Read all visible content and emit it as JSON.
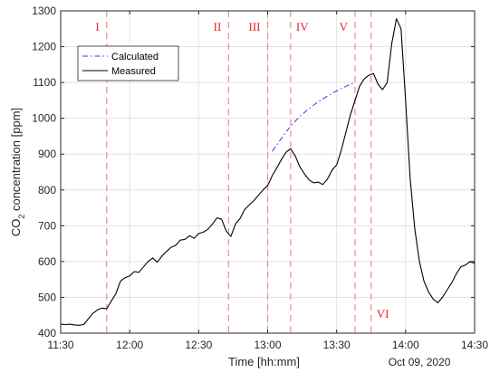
{
  "chart_data": {
    "type": "line",
    "xlabel": "Time [hh:mm]",
    "ylabel_main": "CO",
    "ylabel_sub": "2",
    "ylabel_rest": " concentration [ppm]",
    "date_label": "Oct 09, 2020",
    "xlim": [
      "11:30",
      "14:30"
    ],
    "ylim": [
      400,
      1300
    ],
    "xticks": [
      "11:30",
      "12:00",
      "12:30",
      "13:00",
      "13:30",
      "14:00",
      "14:30"
    ],
    "yticks": [
      400,
      500,
      600,
      700,
      800,
      900,
      1000,
      1100,
      1200,
      1300
    ],
    "grid": true,
    "legend_position": "top-left",
    "colors": {
      "measured": "#000000",
      "calculated": "#3b3bd8",
      "phase_line": "#f08a8a",
      "phase_text": "#e8202a"
    },
    "phases": [
      {
        "label": "I",
        "x": "11:50",
        "label_pos": "top"
      },
      {
        "label": "II",
        "x": "12:43",
        "label_pos": "top"
      },
      {
        "label": "III",
        "x": "13:00",
        "label_pos": "top"
      },
      {
        "label": "IV",
        "x": "13:10",
        "label_pos": "top"
      },
      {
        "label": "V",
        "x": "13:38",
        "label_pos": "top"
      },
      {
        "label": "VI",
        "x": "13:45",
        "label_pos": "bottom"
      }
    ],
    "series": [
      {
        "name": "Calculated",
        "style": "dashdot",
        "x": [
          "13:02",
          "13:05",
          "13:08",
          "13:11",
          "13:14",
          "13:17",
          "13:20",
          "13:23",
          "13:26",
          "13:29",
          "13:32",
          "13:35",
          "13:38"
        ],
        "y": [
          908,
          935,
          962,
          985,
          1005,
          1022,
          1037,
          1050,
          1062,
          1073,
          1083,
          1092,
          1100
        ]
      },
      {
        "name": "Measured",
        "style": "solid",
        "x": [
          "11:30",
          "11:32",
          "11:34",
          "11:36",
          "11:38",
          "11:40",
          "11:42",
          "11:44",
          "11:46",
          "11:48",
          "11:50",
          "11:52",
          "11:54",
          "11:56",
          "11:58",
          "12:00",
          "12:02",
          "12:04",
          "12:06",
          "12:08",
          "12:10",
          "12:12",
          "12:14",
          "12:16",
          "12:18",
          "12:20",
          "12:22",
          "12:24",
          "12:26",
          "12:28",
          "12:30",
          "12:32",
          "12:34",
          "12:36",
          "12:38",
          "12:40",
          "12:42",
          "12:44",
          "12:46",
          "12:48",
          "12:50",
          "12:52",
          "12:54",
          "12:56",
          "12:58",
          "13:00",
          "13:02",
          "13:04",
          "13:06",
          "13:08",
          "13:10",
          "13:12",
          "13:14",
          "13:16",
          "13:18",
          "13:20",
          "13:22",
          "13:24",
          "13:26",
          "13:28",
          "13:30",
          "13:32",
          "13:34",
          "13:36",
          "13:38",
          "13:40",
          "13:42",
          "13:44",
          "13:46",
          "13:48",
          "13:50",
          "13:52",
          "13:54",
          "13:56",
          "13:58",
          "14:00",
          "14:02",
          "14:04",
          "14:06",
          "14:08",
          "14:10",
          "14:12",
          "14:14",
          "14:16",
          "14:18",
          "14:20",
          "14:22",
          "14:24",
          "14:26",
          "14:28",
          "14:30"
        ],
        "y": [
          425,
          424,
          425,
          423,
          422,
          424,
          440,
          455,
          465,
          470,
          468,
          490,
          510,
          545,
          555,
          560,
          572,
          570,
          585,
          600,
          610,
          598,
          615,
          628,
          640,
          645,
          660,
          662,
          672,
          665,
          678,
          682,
          690,
          705,
          722,
          718,
          685,
          670,
          705,
          720,
          745,
          758,
          770,
          785,
          800,
          812,
          840,
          862,
          885,
          905,
          915,
          895,
          865,
          845,
          828,
          820,
          822,
          815,
          830,
          855,
          870,
          910,
          960,
          1010,
          1050,
          1090,
          1110,
          1120,
          1125,
          1095,
          1080,
          1100,
          1210,
          1278,
          1250,
          1050,
          830,
          690,
          600,
          545,
          515,
          495,
          485,
          500,
          520,
          540,
          565,
          585,
          590,
          600,
          595
        ]
      }
    ]
  }
}
